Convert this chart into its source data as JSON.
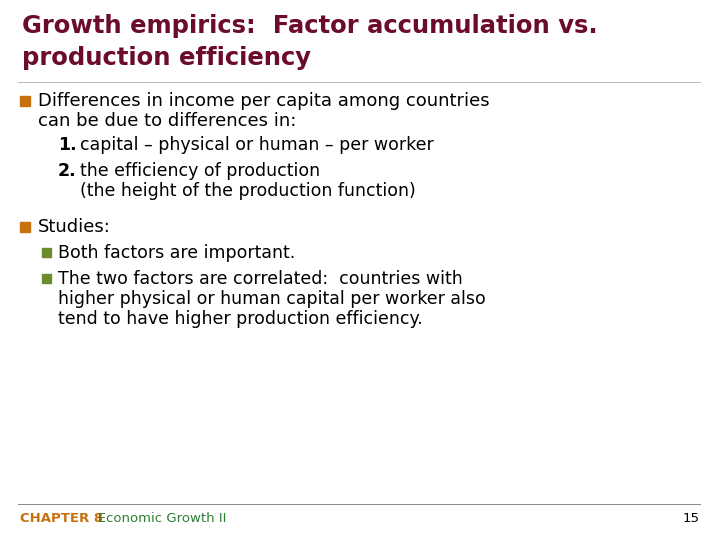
{
  "title_line1": "Growth empirics:  Factor accumulation vs.",
  "title_line2": "production efficiency",
  "title_color": "#6B0C2B",
  "background_color": "#FFFFFF",
  "bullet_color_orange": "#C8700A",
  "bullet_color_green": "#6B8C2A",
  "text_color": "#000000",
  "footer_label": "CHAPTER 8",
  "footer_chapter": "   Economic Growth II",
  "footer_page": "15",
  "footer_label_color": "#C8700A",
  "footer_chapter_color": "#2E7D32",
  "bullet1_text1": "Differences in income per capita among countries",
  "bullet1_text2": "can be due to differences in:",
  "num1_label": "1.",
  "num1_text": "capital – physical or human – per worker",
  "num2_label": "2.",
  "num2_text1": "the efficiency of production",
  "num2_text2": "(the height of the production function)",
  "bullet2_text": "Studies:",
  "sub_bullet1": "Both factors are important.",
  "sub_bullet2_line1": "The two factors are correlated:  countries with",
  "sub_bullet2_line2": "higher physical or human capital per worker also",
  "sub_bullet2_line3": "tend to have higher production efficiency."
}
